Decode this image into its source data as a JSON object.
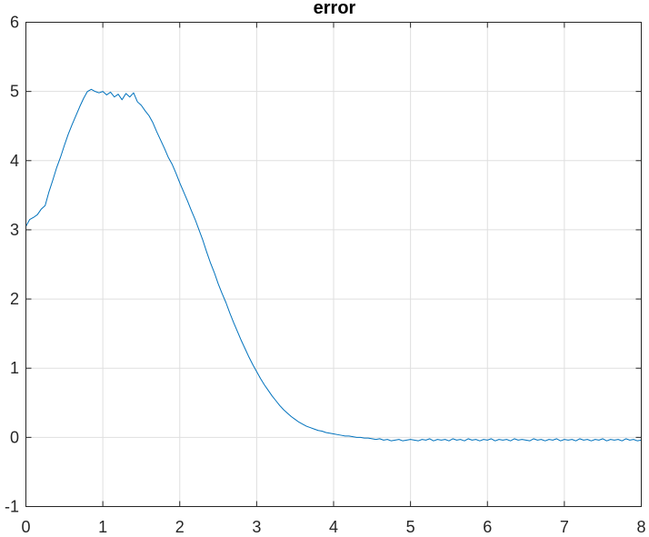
{
  "chart_data": {
    "type": "line",
    "title": "error",
    "xlabel": "",
    "ylabel": "",
    "xlim": [
      0,
      8
    ],
    "ylim": [
      -1,
      6
    ],
    "xticks": [
      "0",
      "1",
      "2",
      "3",
      "4",
      "5",
      "6",
      "7",
      "8"
    ],
    "yticks": [
      "-1",
      "0",
      "1",
      "2",
      "3",
      "4",
      "5",
      "6"
    ],
    "grid": true,
    "legend": "none",
    "series": [
      {
        "color": "#0072BD",
        "x": [
          0.0,
          0.05,
          0.1,
          0.15,
          0.2,
          0.25,
          0.3,
          0.35,
          0.4,
          0.45,
          0.5,
          0.55,
          0.6,
          0.65,
          0.7,
          0.75,
          0.8,
          0.85,
          0.9,
          0.95,
          1.0,
          1.05,
          1.1,
          1.15,
          1.2,
          1.25,
          1.3,
          1.35,
          1.4,
          1.45,
          1.5,
          1.55,
          1.6,
          1.65,
          1.7,
          1.75,
          1.8,
          1.85,
          1.9,
          1.95,
          2.0,
          2.05,
          2.1,
          2.15,
          2.2,
          2.25,
          2.3,
          2.35,
          2.4,
          2.45,
          2.5,
          2.55,
          2.6,
          2.65,
          2.7,
          2.75,
          2.8,
          2.85,
          2.9,
          2.95,
          3.0,
          3.05,
          3.1,
          3.15,
          3.2,
          3.25,
          3.3,
          3.35,
          3.4,
          3.45,
          3.5,
          3.55,
          3.6,
          3.65,
          3.7,
          3.75,
          3.8,
          3.85,
          3.9,
          3.95,
          4.0,
          4.05,
          4.1,
          4.15,
          4.2,
          4.25,
          4.3,
          4.35,
          4.4,
          4.45,
          4.5,
          4.55,
          4.6,
          4.65,
          4.7,
          4.75,
          4.8,
          4.85,
          4.9,
          4.95,
          5.0,
          5.05,
          5.1,
          5.15,
          5.2,
          5.25,
          5.3,
          5.35,
          5.4,
          5.45,
          5.5,
          5.55,
          5.6,
          5.65,
          5.7,
          5.75,
          5.8,
          5.85,
          5.9,
          5.95,
          6.0,
          6.05,
          6.1,
          6.15,
          6.2,
          6.25,
          6.3,
          6.35,
          6.4,
          6.45,
          6.5,
          6.55,
          6.6,
          6.65,
          6.7,
          6.75,
          6.8,
          6.85,
          6.9,
          6.95,
          7.0,
          7.05,
          7.1,
          7.15,
          7.2,
          7.25,
          7.3,
          7.35,
          7.4,
          7.45,
          7.5,
          7.55,
          7.6,
          7.65,
          7.7,
          7.75,
          7.8,
          7.85,
          7.9,
          7.95,
          8.0
        ],
        "y": [
          3.05,
          3.15,
          3.18,
          3.22,
          3.3,
          3.35,
          3.55,
          3.72,
          3.9,
          4.05,
          4.22,
          4.38,
          4.52,
          4.65,
          4.78,
          4.9,
          5.0,
          5.03,
          5.0,
          4.98,
          5.0,
          4.95,
          4.99,
          4.92,
          4.96,
          4.88,
          4.97,
          4.92,
          4.98,
          4.85,
          4.8,
          4.72,
          4.65,
          4.55,
          4.42,
          4.3,
          4.18,
          4.05,
          3.95,
          3.82,
          3.68,
          3.55,
          3.42,
          3.28,
          3.15,
          3.0,
          2.85,
          2.68,
          2.52,
          2.38,
          2.22,
          2.08,
          1.95,
          1.8,
          1.66,
          1.53,
          1.4,
          1.28,
          1.16,
          1.05,
          0.95,
          0.85,
          0.76,
          0.68,
          0.6,
          0.53,
          0.46,
          0.4,
          0.35,
          0.3,
          0.26,
          0.22,
          0.19,
          0.16,
          0.14,
          0.12,
          0.1,
          0.09,
          0.07,
          0.06,
          0.05,
          0.04,
          0.03,
          0.02,
          0.02,
          0.01,
          0.0,
          0.0,
          -0.01,
          -0.01,
          -0.02,
          -0.03,
          -0.02,
          -0.04,
          -0.03,
          -0.05,
          -0.04,
          -0.03,
          -0.05,
          -0.04,
          -0.03,
          -0.04,
          -0.05,
          -0.03,
          -0.04,
          -0.02,
          -0.05,
          -0.03,
          -0.04,
          -0.03,
          -0.05,
          -0.02,
          -0.04,
          -0.03,
          -0.05,
          -0.02,
          -0.04,
          -0.03,
          -0.05,
          -0.03,
          -0.04,
          -0.02,
          -0.05,
          -0.03,
          -0.04,
          -0.03,
          -0.05,
          -0.02,
          -0.04,
          -0.03,
          -0.04,
          -0.05,
          -0.02,
          -0.04,
          -0.03,
          -0.05,
          -0.03,
          -0.04,
          -0.02,
          -0.05,
          -0.03,
          -0.04,
          -0.03,
          -0.05,
          -0.02,
          -0.04,
          -0.03,
          -0.05,
          -0.03,
          -0.04,
          -0.02,
          -0.05,
          -0.03,
          -0.04,
          -0.03,
          -0.05,
          -0.02,
          -0.04,
          -0.03,
          -0.05,
          -0.04
        ]
      }
    ]
  }
}
